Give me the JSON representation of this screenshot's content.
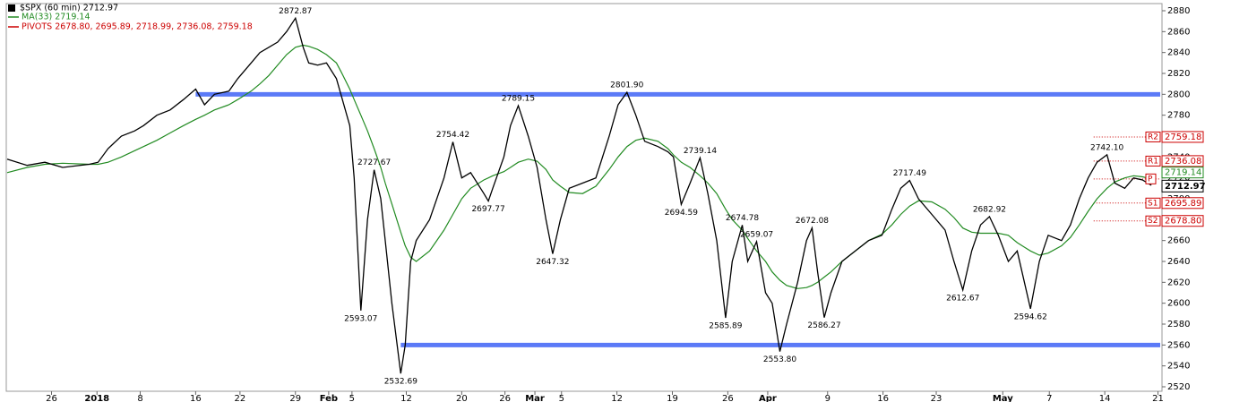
{
  "chart_data": {
    "type": "line",
    "xlim": [
      0,
      104
    ],
    "ylim": [
      2520,
      2880
    ],
    "yticks": [
      2520,
      2540,
      2560,
      2580,
      2600,
      2620,
      2640,
      2660,
      2680,
      2700,
      2720,
      2740,
      2760,
      2780,
      2800,
      2820,
      2840,
      2860,
      2880
    ],
    "xticks": [
      {
        "value": 4.0,
        "label": "26"
      },
      {
        "value": 8.1,
        "label": "2018"
      },
      {
        "value": 12.0,
        "label": "8"
      },
      {
        "value": 17.0,
        "label": "16"
      },
      {
        "value": 21.0,
        "label": "22"
      },
      {
        "value": 26.0,
        "label": "29"
      },
      {
        "value": 29.0,
        "label": "Feb"
      },
      {
        "value": 31.1,
        "label": "5"
      },
      {
        "value": 36.0,
        "label": "12"
      },
      {
        "value": 41.0,
        "label": "20"
      },
      {
        "value": 44.9,
        "label": "26"
      },
      {
        "value": 47.6,
        "label": "Mar"
      },
      {
        "value": 50.0,
        "label": "5"
      },
      {
        "value": 55.0,
        "label": "12"
      },
      {
        "value": 60.0,
        "label": "19"
      },
      {
        "value": 65.0,
        "label": "26"
      },
      {
        "value": 68.6,
        "label": "Apr"
      },
      {
        "value": 74.0,
        "label": "9"
      },
      {
        "value": 79.0,
        "label": "16"
      },
      {
        "value": 83.8,
        "label": "23"
      },
      {
        "value": 89.8,
        "label": "May"
      },
      {
        "value": 94.0,
        "label": "7"
      },
      {
        "value": 99.0,
        "label": "14"
      },
      {
        "value": 103.8,
        "label": "21"
      }
    ],
    "x": [
      0,
      1.8,
      3.4,
      5,
      7.4,
      8.2,
      9.1,
      10.3,
      11.5,
      12.3,
      13.5,
      14.7,
      15.9,
      17,
      17.8,
      18.7,
      20,
      20.8,
      22,
      22.8,
      23.6,
      24.4,
      25.2,
      26,
      26.7,
      27.2,
      28,
      28.8,
      29.7,
      30.1,
      30.9,
      31.3,
      31.9,
      32.5,
      33.1,
      33.7,
      34.1,
      34.7,
      35.5,
      35.9,
      36.4,
      36.9,
      38.1,
      39.4,
      40.2,
      41,
      41.8,
      43,
      43.4,
      43.8,
      44.8,
      45.4,
      46.1,
      47,
      47.8,
      48.6,
      49.2,
      49.9,
      50.7,
      51.9,
      53.1,
      54.3,
      55.1,
      55.9,
      56.7,
      57.5,
      58.7,
      59.6,
      60.1,
      60.8,
      61.6,
      62.5,
      63.2,
      64,
      64.8,
      65.4,
      66.3,
      66.8,
      67.6,
      68.4,
      69,
      69.7,
      70.3,
      71.3,
      72.1,
      72.6,
      73.1,
      73.7,
      74.3,
      75.3,
      76.5,
      77.7,
      78.9,
      79.8,
      80.6,
      81.4,
      82.2,
      83.4,
      84.6,
      85.4,
      86.2,
      87,
      87.8,
      88.6,
      89.4,
      90.3,
      91.1,
      92.3,
      93.1,
      93.9,
      95.1,
      95.9,
      96.7,
      97.5,
      98.3,
      99.2,
      99.9,
      100.8,
      101.6,
      102.4,
      103.2
    ],
    "series": [
      {
        "name": "$SPX (60 min) 2712.97",
        "color": "#000000",
        "values": [
          2738,
          2732,
          2735,
          2730,
          2733,
          2735,
          2748,
          2760,
          2765,
          2770,
          2780,
          2785,
          2795,
          2805,
          2790,
          2800,
          2803,
          2815,
          2830,
          2840,
          2845,
          2850,
          2860,
          2872.87,
          2845,
          2830,
          2828,
          2830,
          2815,
          2800,
          2770,
          2720,
          2593.07,
          2680,
          2727.67,
          2700,
          2660,
          2600,
          2532.69,
          2560,
          2640,
          2660,
          2680,
          2720,
          2754.42,
          2720,
          2725,
          2705,
          2697.77,
          2710,
          2740,
          2770,
          2789.15,
          2760,
          2730,
          2680,
          2647.32,
          2680,
          2710,
          2715,
          2720,
          2760,
          2790,
          2801.9,
          2780,
          2755,
          2750,
          2745,
          2740,
          2694.59,
          2715,
          2739.14,
          2705,
          2660,
          2585.89,
          2640,
          2674.78,
          2640,
          2659.07,
          2610,
          2600,
          2553.8,
          2580,
          2620,
          2660,
          2672.08,
          2630,
          2586.27,
          2610,
          2640,
          2650,
          2660,
          2665,
          2690,
          2710,
          2717.49,
          2700,
          2685,
          2670,
          2640,
          2612.67,
          2650,
          2675,
          2682.92,
          2665,
          2640,
          2650,
          2594.62,
          2640,
          2665,
          2660,
          2675,
          2700,
          2720,
          2735,
          2742.1,
          2715,
          2710,
          2720,
          2718,
          2712.97
        ],
        "value_labels": [
          null,
          null,
          null,
          null,
          null,
          null,
          null,
          null,
          null,
          null,
          null,
          null,
          null,
          null,
          null,
          null,
          null,
          null,
          null,
          null,
          null,
          null,
          null,
          "2872.87",
          null,
          null,
          null,
          null,
          null,
          null,
          null,
          null,
          "2593.07",
          null,
          "2727.67",
          null,
          null,
          null,
          "2532.69",
          null,
          null,
          null,
          null,
          null,
          "2754.42",
          null,
          null,
          null,
          "2697.77",
          null,
          null,
          null,
          "2789.15",
          null,
          null,
          null,
          "2647.32",
          null,
          null,
          null,
          null,
          null,
          null,
          "2801.90",
          null,
          null,
          null,
          null,
          null,
          "2694.59",
          null,
          "2739.14",
          null,
          null,
          "2585.89",
          null,
          "2674.78",
          null,
          "2659.07",
          null,
          null,
          "2553.80",
          null,
          null,
          null,
          "2672.08",
          null,
          "2586.27",
          null,
          null,
          null,
          null,
          null,
          null,
          null,
          "2717.49",
          null,
          null,
          null,
          null,
          "2612.67",
          null,
          null,
          "2682.92",
          null,
          null,
          null,
          "2594.62",
          null,
          null,
          null,
          null,
          null,
          null,
          null,
          "2742.10",
          null,
          null,
          null,
          null,
          null
        ]
      },
      {
        "name": "MA(33) 2719.14",
        "color": "#228b22",
        "values": [
          2725,
          2730,
          2733,
          2734,
          2733,
          2733,
          2735,
          2740,
          2746,
          2750,
          2756,
          2763,
          2770,
          2776,
          2780,
          2785,
          2790,
          2795,
          2803,
          2810,
          2818,
          2828,
          2838,
          2845,
          2847,
          2846,
          2843,
          2838,
          2830,
          2822,
          2805,
          2795,
          2780,
          2765,
          2748,
          2730,
          2715,
          2695,
          2668,
          2655,
          2644,
          2640,
          2650,
          2670,
          2685,
          2700,
          2710,
          2718,
          2720,
          2722,
          2726,
          2730,
          2735,
          2738,
          2736,
          2728,
          2718,
          2712,
          2706,
          2705,
          2712,
          2728,
          2740,
          2750,
          2756,
          2758,
          2755,
          2748,
          2742,
          2735,
          2730,
          2722,
          2715,
          2705,
          2690,
          2680,
          2670,
          2662,
          2650,
          2640,
          2630,
          2622,
          2617,
          2614,
          2615,
          2617,
          2620,
          2625,
          2630,
          2640,
          2650,
          2660,
          2666,
          2675,
          2685,
          2693,
          2698,
          2697,
          2690,
          2682,
          2672,
          2668,
          2667,
          2667,
          2667,
          2665,
          2658,
          2650,
          2646,
          2648,
          2655,
          2663,
          2675,
          2688,
          2700,
          2710,
          2716,
          2720,
          2722,
          2721,
          2719
        ]
      }
    ],
    "pivots_label": "PIVOTS 2678.80, 2695.89, 2718.99, 2736.08, 2759.18",
    "pivots_color": "#cc0000",
    "pivots": [
      {
        "name": "R2",
        "value": 2759.18,
        "label": "2759.18"
      },
      {
        "name": "R1",
        "value": 2736.08,
        "label": "2736.08"
      },
      {
        "name": "P",
        "value": 2718.99
      },
      {
        "name": "S1",
        "value": 2695.89,
        "label": "2695.89"
      },
      {
        "name": "S2",
        "value": 2678.8,
        "label": "2678.80"
      }
    ],
    "ma_last": 2719.14,
    "last_price": 2712.97,
    "horizontal_lines": [
      {
        "value": 2800,
        "from": 17.0,
        "color": "#4a6cf7"
      },
      {
        "value": 2560,
        "from": 35.5,
        "color": "#4a6cf7"
      }
    ]
  }
}
